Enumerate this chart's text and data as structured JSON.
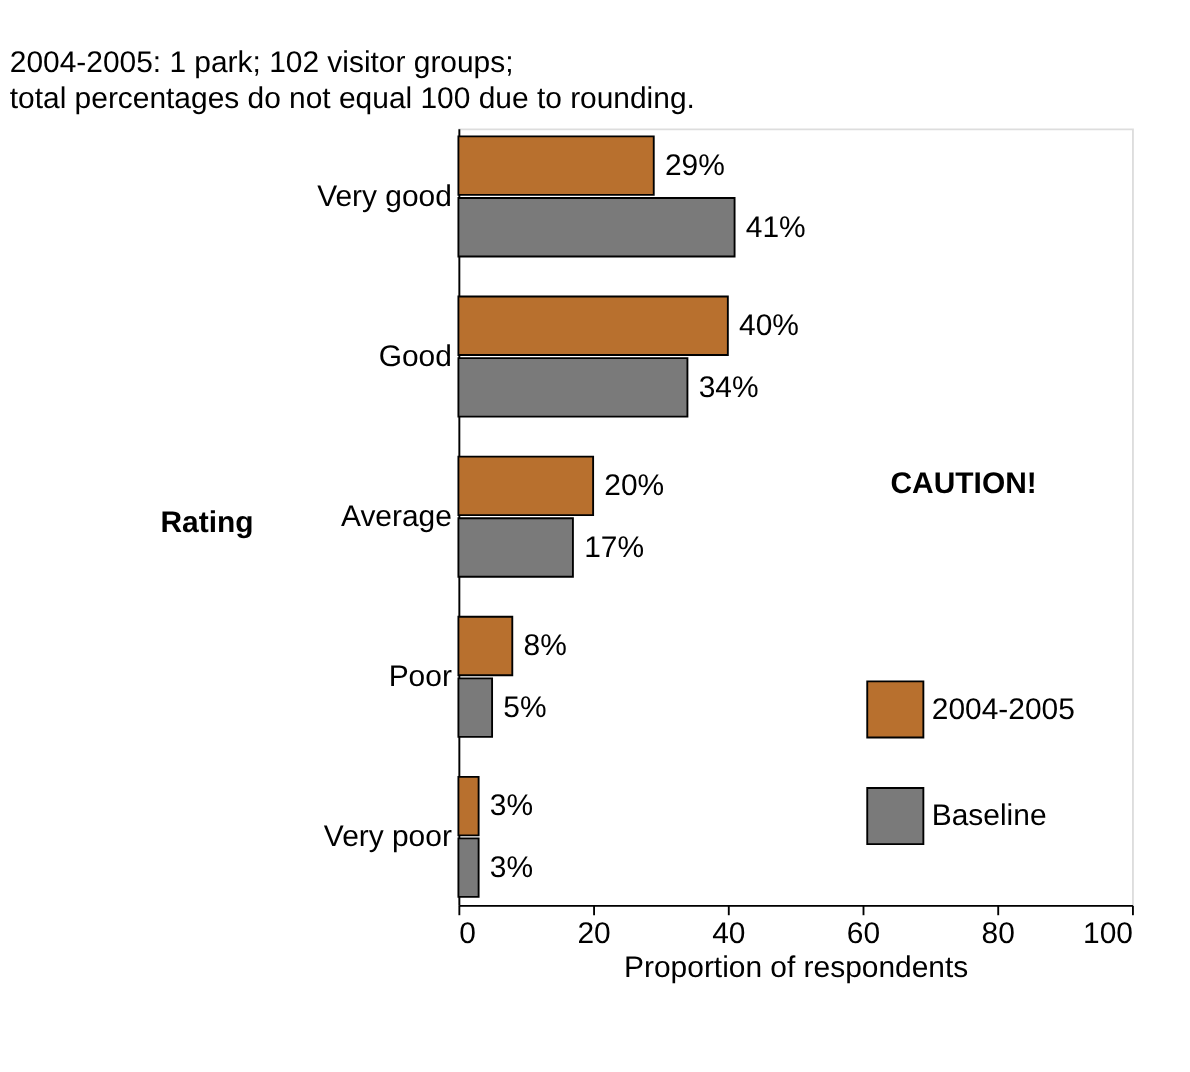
{
  "chart_data": {
    "type": "bar",
    "orientation": "horizontal",
    "title": "2004-2005: 1 park; 102 visitor groups;",
    "subtitle": "total percentages do not equal 100 due to rounding.",
    "xlabel": "Proportion of respondents",
    "ylabel": "Rating",
    "categories": [
      "Very good",
      "Good",
      "Average",
      "Poor",
      "Very poor"
    ],
    "series": [
      {
        "name": "2004-2005",
        "color": "#b8702e",
        "values": [
          29,
          40,
          20,
          8,
          3
        ],
        "value_labels": [
          "29%",
          "40%",
          "20%",
          "8%",
          "3%"
        ]
      },
      {
        "name": "Baseline",
        "color": "#7a7a7a",
        "values": [
          41,
          34,
          17,
          5,
          3
        ],
        "value_labels": [
          "41%",
          "34%",
          "17%",
          "5%",
          "3%"
        ]
      }
    ],
    "xlim": [
      0,
      100
    ],
    "xticks": [
      0,
      20,
      40,
      60,
      80,
      100
    ],
    "grid": false,
    "legend": "bottom right",
    "annotations": [
      "CAUTION!"
    ]
  }
}
